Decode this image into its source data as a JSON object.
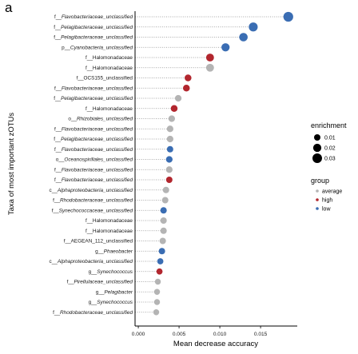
{
  "panel_label": "a",
  "chart_data": {
    "type": "scatter",
    "subtype": "lollipop",
    "xlabel": "Mean decrease accuracy",
    "ylabel": "Taxa of most important zOTUs",
    "xlim": [
      -0.0003,
      0.0195
    ],
    "xticks": [
      0.0,
      0.005,
      0.01,
      0.015
    ],
    "xtick_labels": [
      "0.000",
      "0.005",
      "0.010",
      "0.015"
    ],
    "grid": false,
    "connector_style": "dotted",
    "categories": [
      "f__Flavobacteriaceae_unclassified",
      "f__Pelagibacteraceae_unclassified",
      "f__Pelagibacteraceae_unclassified",
      "p__Cyanobacteria_unclassified",
      "f__Halomonadaceae",
      "f__Halomonadaceae",
      "f__OCS155_unclassified",
      "f__Flavobacteriaceae_unclassified",
      "f__Pelagibacteraceae_unclassified",
      "f__Halomonadaceae",
      "o__Rhizobiales_unclassified",
      "f__Flavobacteriaceae_unclassified",
      "f__Pelagibacteraceae_unclassified",
      "f__Flavobacteriaceae_unclassified",
      "o__Oceanospirillales_unclassified",
      "f__Flavobacteriaceae_unclassified",
      "f__Flavobacteriaceae_unclassified",
      "c__Alphaproteobacteria_unclassified",
      "f__Rhodobacteraceae_unclassified",
      "f__Synechococcaceae_unclassified",
      "f__Halomonadaceae",
      "f__Halomonadaceae",
      "f__AEGEAN_112_unclassified",
      "g__Phaeobacter",
      "c__Alphaproteobacteria_unclassified",
      "g__Synechococcus",
      "f__Pirellulaceae_unclassified",
      "g__Pelagibacter",
      "g__Synechococcus",
      "f__Rhodobacteraceae_unclassified"
    ],
    "values": [
      0.0184,
      0.0141,
      0.0129,
      0.0107,
      0.0088,
      0.0088,
      0.0061,
      0.0059,
      0.0049,
      0.0044,
      0.0041,
      0.0039,
      0.0039,
      0.0039,
      0.0038,
      0.0038,
      0.0038,
      0.0034,
      0.0033,
      0.0031,
      0.0031,
      0.0031,
      0.003,
      0.0029,
      0.0027,
      0.0026,
      0.0024,
      0.0023,
      0.0023,
      0.0022
    ],
    "groups": [
      "low",
      "low",
      "low",
      "low",
      "high",
      "average",
      "high",
      "high",
      "average",
      "high",
      "average",
      "average",
      "average",
      "low",
      "low",
      "average",
      "high",
      "average",
      "average",
      "low",
      "average",
      "average",
      "average",
      "low",
      "low",
      "high",
      "average",
      "average",
      "average",
      "average"
    ],
    "enrichment": [
      0.032,
      0.025,
      0.022,
      0.02,
      0.018,
      0.018,
      0.012,
      0.012,
      0.011,
      0.012,
      0.011,
      0.011,
      0.011,
      0.01,
      0.011,
      0.011,
      0.01,
      0.01,
      0.01,
      0.01,
      0.01,
      0.01,
      0.01,
      0.01,
      0.009,
      0.009,
      0.008,
      0.008,
      0.008,
      0.008
    ],
    "legends": {
      "enrichment": {
        "title": "enrichment",
        "entries": [
          "0.01",
          "0.02",
          "0.03"
        ],
        "values": [
          0.01,
          0.02,
          0.03
        ]
      },
      "group": {
        "title": "group",
        "entries": [
          "average",
          "high",
          "low"
        ]
      },
      "placement": "right"
    },
    "colors": {
      "average": "#b4b4b4",
      "high": "#b2262e",
      "low": "#3a6db3",
      "connector": "#8a8a8a",
      "axis": "#000000"
    }
  }
}
